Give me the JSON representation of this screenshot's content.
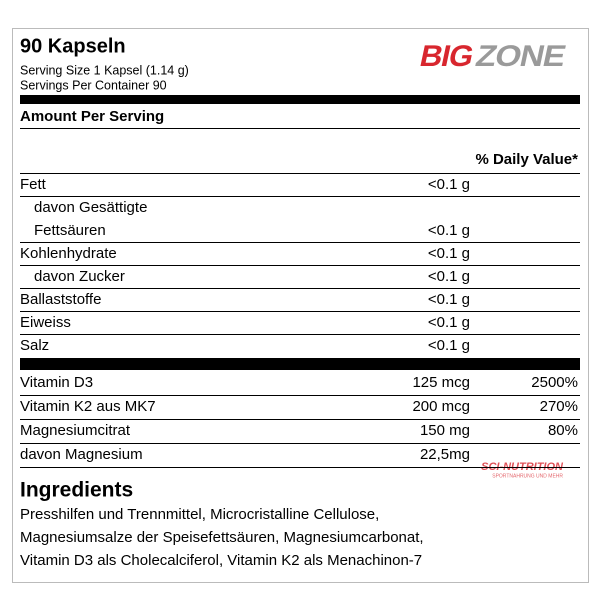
{
  "header": {
    "title": "90 Kapseln",
    "serving_size": "Serving Size 1 Kapsel (1.14 g)",
    "servings_per_container": "Servings Per Container 90"
  },
  "logo": {
    "big": "BIG",
    "zone": "ZONE"
  },
  "amount_heading": "Amount Per Serving",
  "daily_value_heading": "% Daily Value*",
  "nutrients": [
    {
      "label": [
        "Fett"
      ],
      "value": "<0.1 g"
    },
    {
      "label": [
        "davon Gesättigte",
        "Fettsäuren"
      ],
      "value": "<0.1 g"
    },
    {
      "label": [
        "Kohlenhydrate"
      ],
      "value": "<0.1 g"
    },
    {
      "label": [
        "davon Zucker"
      ],
      "value": "<0.1 g"
    },
    {
      "label": [
        "Ballaststoffe"
      ],
      "value": "<0.1 g"
    },
    {
      "label": [
        "Eiweiss"
      ],
      "value": "<0.1 g"
    },
    {
      "label": [
        "Salz"
      ],
      "value": "<0.1 g"
    }
  ],
  "vitamins": [
    {
      "label": "Vitamin D3",
      "amount": "125 mcg",
      "daily_value": "2500%"
    },
    {
      "label": "Vitamin K2 aus MK7",
      "amount": "200 mcg",
      "daily_value": "270%"
    },
    {
      "label": "Magnesiumcitrat",
      "amount": "150 mg",
      "daily_value": "80%"
    },
    {
      "label": "davon Magnesium",
      "amount": "22,5mg"
    }
  ],
  "watermark": {
    "brand": "SCI-NUTRITION",
    "tagline": "SPORTNAHRUNG UND MEHR"
  },
  "ingredients": {
    "title": "Ingredients",
    "lines": [
      "Presshilfen und Trennmittel, Microcristalline Cellulose,",
      "Magnesiumsalze der Speisefettsäuren, Magnesiumcarbonat,",
      "Vitamin D3 als Cholecalciferol, Vitamin K2 als Menachinon-7"
    ]
  }
}
